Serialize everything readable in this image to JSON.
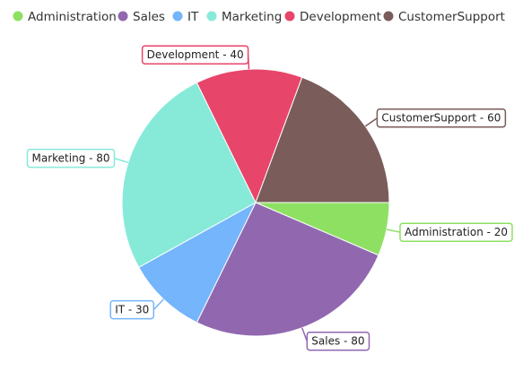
{
  "chart_data": {
    "type": "pie",
    "title": "",
    "legend_position": "top",
    "slices": [
      {
        "name": "Administration",
        "value": 20,
        "label": "Administration - 20",
        "color": "#8ee063"
      },
      {
        "name": "Sales",
        "value": 80,
        "label": "Sales - 80",
        "color": "#9168b0"
      },
      {
        "name": "IT",
        "value": 30,
        "label": "IT - 30",
        "color": "#74b5fc"
      },
      {
        "name": "Marketing",
        "value": 80,
        "label": "Marketing - 80",
        "color": "#87ead9"
      },
      {
        "name": "Development",
        "value": 40,
        "label": "Development - 40",
        "color": "#e8456b"
      },
      {
        "name": "CustomerSupport",
        "value": 60,
        "label": "CustomerSupport - 60",
        "color": "#7a5c5a"
      }
    ]
  }
}
